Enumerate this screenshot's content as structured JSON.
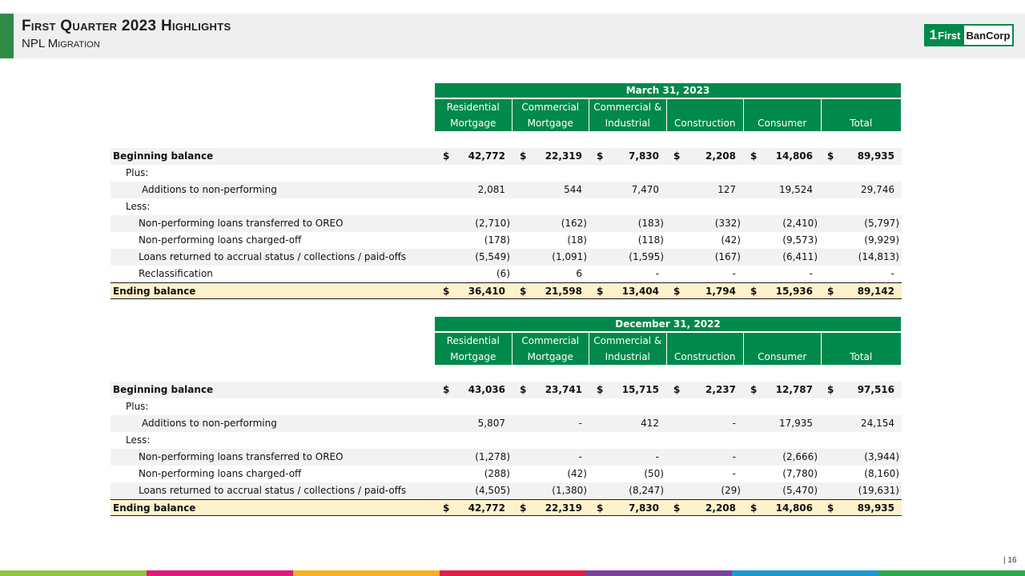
{
  "header": {
    "title": "First Quarter 2023 Highlights",
    "subtitle": "NPL Migration"
  },
  "logo": {
    "one": "1",
    "first": "First",
    "bancorp": "BanCorp"
  },
  "columns": [
    [
      "Residential",
      "Mortgage"
    ],
    [
      "Commercial",
      "Mortgage"
    ],
    [
      "Commercial &",
      "Industrial"
    ],
    [
      "",
      "Construction"
    ],
    [
      "",
      "Consumer"
    ],
    [
      "",
      "Total"
    ]
  ],
  "tables": [
    {
      "period": "March 31, 2023",
      "rows": [
        {
          "label": "Beginning balance",
          "style": "bold shade",
          "indent": 0,
          "dollar": true,
          "values": [
            "42,772",
            "22,319",
            "7,830",
            "2,208",
            "14,806",
            "89,935"
          ]
        },
        {
          "label": "Plus:",
          "style": "",
          "indent": 1,
          "dollar": false,
          "values": [
            "",
            "",
            "",
            "",
            "",
            ""
          ]
        },
        {
          "label": "Additions to non-performing",
          "style": "shade",
          "indent": 3,
          "dollar": false,
          "values": [
            "2,081",
            "544",
            "7,470",
            "127",
            "19,524",
            "29,746"
          ]
        },
        {
          "label": "Less:",
          "style": "",
          "indent": 1,
          "dollar": false,
          "values": [
            "",
            "",
            "",
            "",
            "",
            ""
          ]
        },
        {
          "label": "Non-performing loans transferred to OREO",
          "style": "shade",
          "indent": 2,
          "dollar": false,
          "values": [
            "(2,710)",
            "(162)",
            "(183)",
            "(332)",
            "(2,410)",
            "(5,797)"
          ]
        },
        {
          "label": "Non-performing loans charged-off",
          "style": "",
          "indent": 2,
          "dollar": false,
          "values": [
            "(178)",
            "(18)",
            "(118)",
            "(42)",
            "(9,573)",
            "(9,929)"
          ]
        },
        {
          "label": "Loans returned to accrual status / collections / paid-offs",
          "style": "shade",
          "indent": 2,
          "dollar": false,
          "values": [
            "(5,549)",
            "(1,091)",
            "(1,595)",
            "(167)",
            "(6,411)",
            "(14,813)"
          ]
        },
        {
          "label": "Reclassification",
          "style": "",
          "indent": 2,
          "dollar": false,
          "values": [
            "(6)",
            "6",
            "-",
            "-",
            "-",
            "-"
          ]
        },
        {
          "label": "Ending balance",
          "style": "ending",
          "indent": 0,
          "dollar": true,
          "values": [
            "36,410",
            "21,598",
            "13,404",
            "1,794",
            "15,936",
            "89,142"
          ]
        }
      ]
    },
    {
      "period": "December 31, 2022",
      "rows": [
        {
          "label": "Beginning balance",
          "style": "bold shade",
          "indent": 0,
          "dollar": true,
          "values": [
            "43,036",
            "23,741",
            "15,715",
            "2,237",
            "12,787",
            "97,516"
          ]
        },
        {
          "label": "Plus:",
          "style": "",
          "indent": 1,
          "dollar": false,
          "values": [
            "",
            "",
            "",
            "",
            "",
            ""
          ]
        },
        {
          "label": "Additions to non-performing",
          "style": "shade",
          "indent": 3,
          "dollar": false,
          "values": [
            "5,807",
            "-",
            "412",
            "-",
            "17,935",
            "24,154"
          ]
        },
        {
          "label": "Less:",
          "style": "",
          "indent": 1,
          "dollar": false,
          "values": [
            "",
            "",
            "",
            "",
            "",
            ""
          ]
        },
        {
          "label": "Non-performing loans transferred to OREO",
          "style": "shade",
          "indent": 2,
          "dollar": false,
          "values": [
            "(1,278)",
            "-",
            "-",
            "-",
            "(2,666)",
            "(3,944)"
          ]
        },
        {
          "label": "Non-performing loans charged-off",
          "style": "",
          "indent": 2,
          "dollar": false,
          "values": [
            "(288)",
            "(42)",
            "(50)",
            "-",
            "(7,780)",
            "(8,160)"
          ]
        },
        {
          "label": "Loans returned to accrual status / collections / paid-offs",
          "style": "shade",
          "indent": 2,
          "dollar": false,
          "values": [
            "(4,505)",
            "(1,380)",
            "(8,247)",
            "(29)",
            "(5,470)",
            "(19,631)"
          ]
        },
        {
          "label": "Ending balance",
          "style": "ending",
          "indent": 0,
          "dollar": true,
          "values": [
            "42,772",
            "22,319",
            "7,830",
            "2,208",
            "14,806",
            "89,935"
          ]
        }
      ]
    }
  ],
  "dollar_sign": "$",
  "page": "| 16",
  "colors": {
    "brand_green": "#00894b",
    "ending_fill": "#fef2cc",
    "strip": [
      "#8dc63f",
      "#e0187b",
      "#f7b11f",
      "#e21b4b",
      "#7b3fa0",
      "#1b9ad6",
      "#2bab4a"
    ]
  }
}
